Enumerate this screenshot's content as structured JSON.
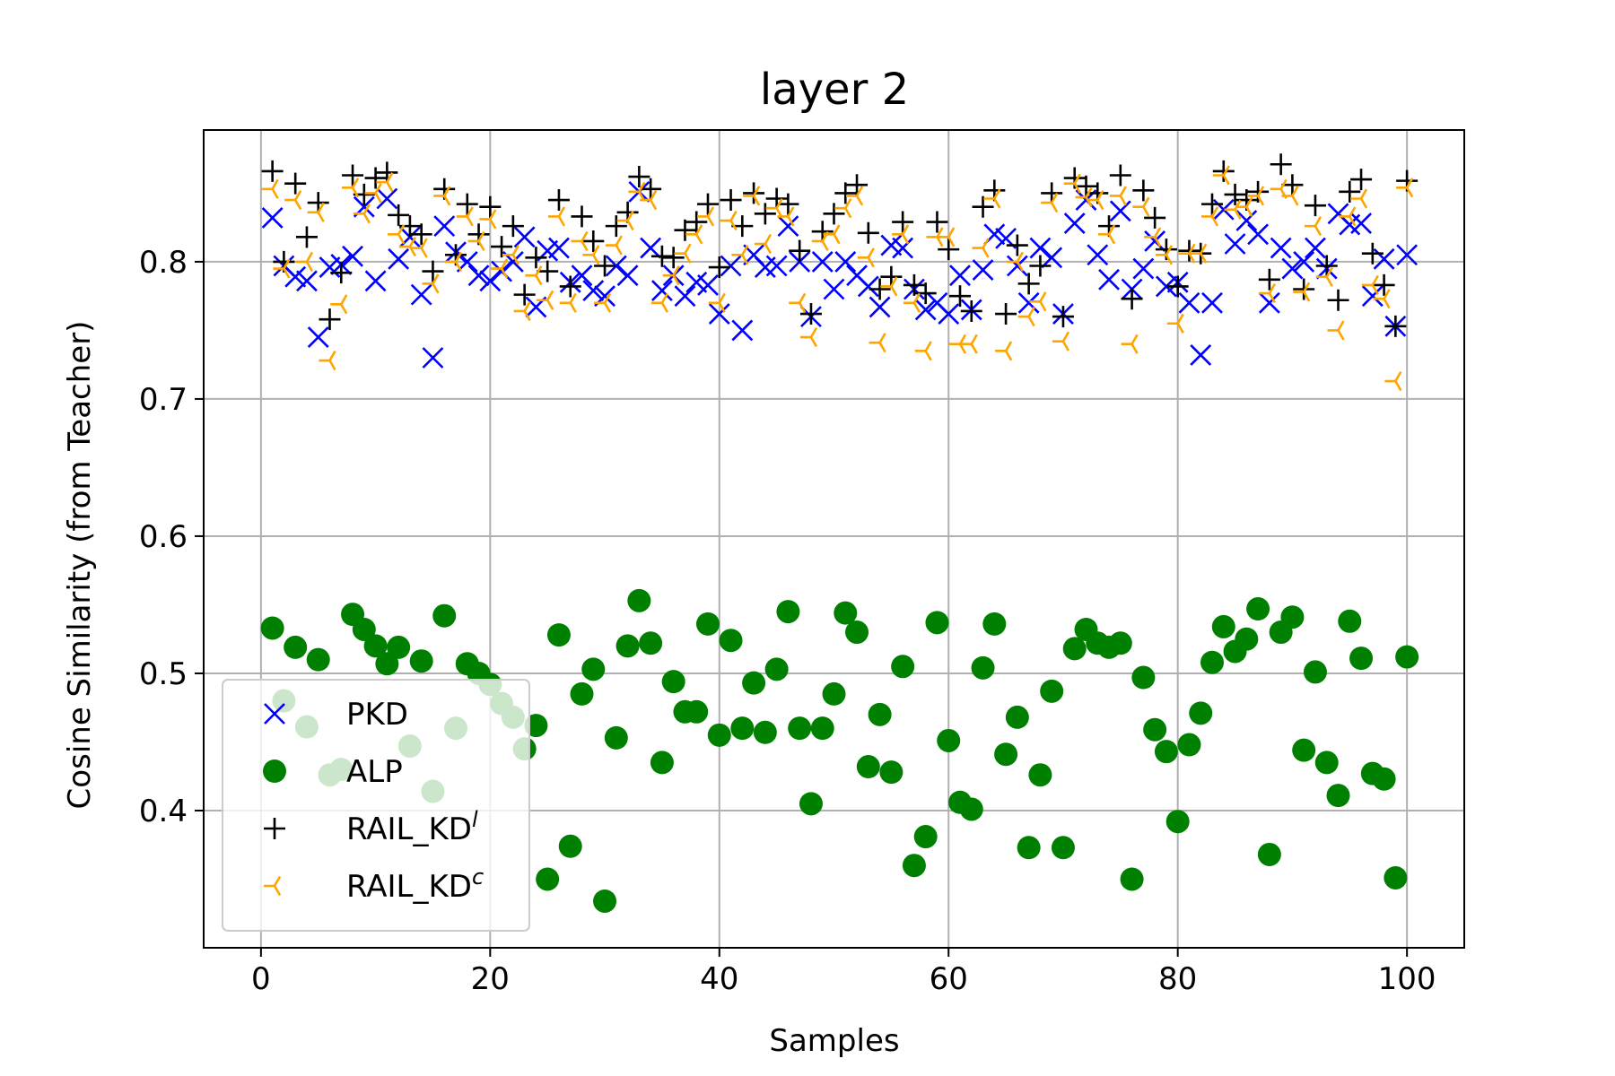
{
  "chart_data": {
    "type": "scatter",
    "title": "layer 2",
    "xlabel": "Samples",
    "ylabel": "Cosine Similarity (from Teacher)",
    "xlim": [
      -5,
      105
    ],
    "ylim": [
      0.3,
      0.896
    ],
    "xticks": [
      0,
      20,
      40,
      60,
      80,
      100
    ],
    "xtick_labels": [
      "0",
      "20",
      "40",
      "60",
      "80",
      "100"
    ],
    "yticks": [
      0.4,
      0.5,
      0.6,
      0.7,
      0.8
    ],
    "ytick_labels": [
      "0.4",
      "0.5",
      "0.6",
      "0.7",
      "0.8"
    ],
    "grid": true,
    "legend_position": "lower-left",
    "series": [
      {
        "name": "PKD",
        "marker": "x",
        "color": "#0000ff",
        "x": [
          1,
          2,
          3,
          4,
          5,
          6,
          7,
          8,
          9,
          10,
          11,
          12,
          13,
          14,
          15,
          16,
          17,
          18,
          19,
          20,
          21,
          22,
          23,
          24,
          25,
          26,
          27,
          28,
          29,
          30,
          31,
          32,
          33,
          34,
          35,
          36,
          37,
          38,
          39,
          40,
          41,
          42,
          43,
          44,
          45,
          46,
          47,
          48,
          49,
          50,
          51,
          52,
          53,
          54,
          55,
          56,
          57,
          58,
          59,
          60,
          61,
          62,
          63,
          64,
          65,
          66,
          67,
          68,
          69,
          70,
          71,
          72,
          73,
          74,
          75,
          76,
          77,
          78,
          79,
          80,
          81,
          82,
          83,
          84,
          85,
          86,
          87,
          88,
          89,
          90,
          91,
          92,
          93,
          94,
          95,
          96,
          97,
          98,
          99,
          100
        ],
        "y": [
          0.832,
          0.797,
          0.789,
          0.786,
          0.745,
          0.796,
          0.798,
          0.804,
          0.84,
          0.786,
          0.846,
          0.802,
          0.818,
          0.776,
          0.73,
          0.826,
          0.807,
          0.8,
          0.79,
          0.786,
          0.793,
          0.8,
          0.818,
          0.767,
          0.808,
          0.81,
          0.785,
          0.79,
          0.779,
          0.775,
          0.797,
          0.79,
          0.851,
          0.81,
          0.779,
          0.79,
          0.775,
          0.785,
          0.783,
          0.762,
          0.797,
          0.75,
          0.805,
          0.796,
          0.797,
          0.826,
          0.8,
          0.76,
          0.8,
          0.78,
          0.8,
          0.79,
          0.782,
          0.767,
          0.812,
          0.81,
          0.78,
          0.765,
          0.77,
          0.762,
          0.79,
          0.765,
          0.794,
          0.82,
          0.817,
          0.797,
          0.77,
          0.81,
          0.803,
          0.762,
          0.828,
          0.845,
          0.805,
          0.787,
          0.837,
          0.78,
          0.795,
          0.815,
          0.782,
          0.785,
          0.77,
          0.732,
          0.77,
          0.838,
          0.813,
          0.83,
          0.82,
          0.77,
          0.81,
          0.795,
          0.8,
          0.81,
          0.795,
          0.835,
          0.827,
          0.828,
          0.775,
          0.802,
          0.753,
          0.805
        ]
      },
      {
        "name": "ALP",
        "marker": "o",
        "color": "#008000",
        "x": [
          1,
          2,
          3,
          4,
          5,
          6,
          7,
          8,
          9,
          10,
          11,
          12,
          13,
          14,
          15,
          16,
          17,
          18,
          19,
          20,
          21,
          22,
          23,
          24,
          25,
          26,
          27,
          28,
          29,
          30,
          31,
          32,
          33,
          34,
          35,
          36,
          37,
          38,
          39,
          40,
          41,
          42,
          43,
          44,
          45,
          46,
          47,
          48,
          49,
          50,
          51,
          52,
          53,
          54,
          55,
          56,
          57,
          58,
          59,
          60,
          61,
          62,
          63,
          64,
          65,
          66,
          67,
          68,
          69,
          70,
          71,
          72,
          73,
          74,
          75,
          76,
          77,
          78,
          79,
          80,
          81,
          82,
          83,
          84,
          85,
          86,
          87,
          88,
          89,
          90,
          91,
          92,
          93,
          94,
          95,
          96,
          97,
          98,
          99,
          100
        ],
        "y": [
          0.533,
          0.48,
          0.519,
          0.461,
          0.51,
          0.426,
          0.43,
          0.543,
          0.532,
          0.52,
          0.507,
          0.519,
          0.447,
          0.509,
          0.414,
          0.542,
          0.46,
          0.507,
          0.5,
          0.492,
          0.478,
          0.468,
          0.445,
          0.462,
          0.35,
          0.528,
          0.374,
          0.485,
          0.503,
          0.334,
          0.453,
          0.52,
          0.553,
          0.522,
          0.435,
          0.494,
          0.472,
          0.472,
          0.536,
          0.455,
          0.524,
          0.46,
          0.493,
          0.457,
          0.503,
          0.545,
          0.46,
          0.405,
          0.46,
          0.485,
          0.544,
          0.53,
          0.432,
          0.47,
          0.428,
          0.505,
          0.36,
          0.381,
          0.537,
          0.451,
          0.406,
          0.401,
          0.504,
          0.536,
          0.441,
          0.468,
          0.373,
          0.426,
          0.487,
          0.373,
          0.518,
          0.532,
          0.522,
          0.519,
          0.522,
          0.35,
          0.497,
          0.459,
          0.443,
          0.392,
          0.448,
          0.471,
          0.508,
          0.534,
          0.516,
          0.525,
          0.547,
          0.368,
          0.53,
          0.541,
          0.444,
          0.501,
          0.435,
          0.411,
          0.538,
          0.511,
          0.427,
          0.423,
          0.351,
          0.512
        ]
      },
      {
        "name": "RAIL_KD",
        "name_superscript": "l",
        "marker": "+",
        "color": "#000000",
        "x": [
          1,
          2,
          3,
          4,
          5,
          6,
          7,
          8,
          9,
          10,
          11,
          12,
          13,
          14,
          15,
          16,
          17,
          18,
          19,
          20,
          21,
          22,
          23,
          24,
          25,
          26,
          27,
          28,
          29,
          30,
          31,
          32,
          33,
          34,
          35,
          36,
          37,
          38,
          39,
          40,
          41,
          42,
          43,
          44,
          45,
          46,
          47,
          48,
          49,
          50,
          51,
          52,
          53,
          54,
          55,
          56,
          57,
          58,
          59,
          60,
          61,
          62,
          63,
          64,
          65,
          66,
          67,
          68,
          69,
          70,
          71,
          72,
          73,
          74,
          75,
          76,
          77,
          78,
          79,
          80,
          81,
          82,
          83,
          84,
          85,
          86,
          87,
          88,
          89,
          90,
          91,
          92,
          93,
          94,
          95,
          96,
          97,
          98,
          99,
          100
        ],
        "y": [
          0.866,
          0.8,
          0.857,
          0.818,
          0.843,
          0.758,
          0.792,
          0.863,
          0.849,
          0.861,
          0.865,
          0.834,
          0.826,
          0.82,
          0.793,
          0.853,
          0.805,
          0.842,
          0.82,
          0.84,
          0.811,
          0.826,
          0.776,
          0.803,
          0.793,
          0.845,
          0.782,
          0.833,
          0.815,
          0.797,
          0.826,
          0.836,
          0.862,
          0.853,
          0.804,
          0.803,
          0.823,
          0.829,
          0.842,
          0.796,
          0.845,
          0.826,
          0.85,
          0.835,
          0.846,
          0.842,
          0.808,
          0.762,
          0.822,
          0.835,
          0.85,
          0.856,
          0.821,
          0.78,
          0.789,
          0.829,
          0.783,
          0.777,
          0.829,
          0.809,
          0.775,
          0.764,
          0.84,
          0.852,
          0.762,
          0.812,
          0.784,
          0.797,
          0.85,
          0.76,
          0.861,
          0.855,
          0.85,
          0.826,
          0.863,
          0.773,
          0.852,
          0.832,
          0.809,
          0.782,
          0.808,
          0.806,
          0.842,
          0.866,
          0.849,
          0.845,
          0.851,
          0.787,
          0.871,
          0.856,
          0.78,
          0.841,
          0.797,
          0.772,
          0.851,
          0.86,
          0.806,
          0.783,
          0.753,
          0.859
        ]
      },
      {
        "name": "RAIL_KD",
        "name_superscript": "c",
        "marker": "tri_left",
        "color": "#ffa500",
        "x": [
          1,
          2,
          3,
          4,
          5,
          6,
          7,
          8,
          9,
          10,
          11,
          12,
          13,
          14,
          15,
          16,
          17,
          18,
          19,
          20,
          21,
          22,
          23,
          24,
          25,
          26,
          27,
          28,
          29,
          30,
          31,
          32,
          33,
          34,
          35,
          36,
          37,
          38,
          39,
          40,
          41,
          42,
          43,
          44,
          45,
          46,
          47,
          48,
          49,
          50,
          51,
          52,
          53,
          54,
          55,
          56,
          57,
          58,
          59,
          60,
          61,
          62,
          63,
          64,
          65,
          66,
          67,
          68,
          69,
          70,
          71,
          72,
          73,
          74,
          75,
          76,
          77,
          78,
          79,
          80,
          81,
          82,
          83,
          84,
          85,
          86,
          87,
          88,
          89,
          90,
          91,
          92,
          93,
          94,
          95,
          96,
          97,
          98,
          99,
          100
        ],
        "y": [
          0.853,
          0.795,
          0.845,
          0.8,
          0.836,
          0.728,
          0.769,
          0.854,
          0.835,
          0.85,
          0.858,
          0.82,
          0.811,
          0.81,
          0.784,
          0.848,
          0.8,
          0.833,
          0.815,
          0.831,
          0.795,
          0.805,
          0.764,
          0.79,
          0.772,
          0.833,
          0.77,
          0.815,
          0.805,
          0.77,
          0.812,
          0.83,
          0.851,
          0.845,
          0.77,
          0.79,
          0.806,
          0.82,
          0.833,
          0.77,
          0.83,
          0.805,
          0.848,
          0.813,
          0.839,
          0.833,
          0.77,
          0.745,
          0.815,
          0.82,
          0.839,
          0.848,
          0.803,
          0.741,
          0.782,
          0.82,
          0.77,
          0.735,
          0.818,
          0.818,
          0.74,
          0.74,
          0.81,
          0.846,
          0.735,
          0.8,
          0.76,
          0.771,
          0.843,
          0.742,
          0.857,
          0.847,
          0.845,
          0.82,
          0.848,
          0.74,
          0.84,
          0.818,
          0.805,
          0.755,
          0.806,
          0.806,
          0.833,
          0.863,
          0.838,
          0.84,
          0.848,
          0.777,
          0.853,
          0.848,
          0.778,
          0.826,
          0.789,
          0.75,
          0.833,
          0.846,
          0.783,
          0.773,
          0.713,
          0.854
        ]
      }
    ]
  }
}
